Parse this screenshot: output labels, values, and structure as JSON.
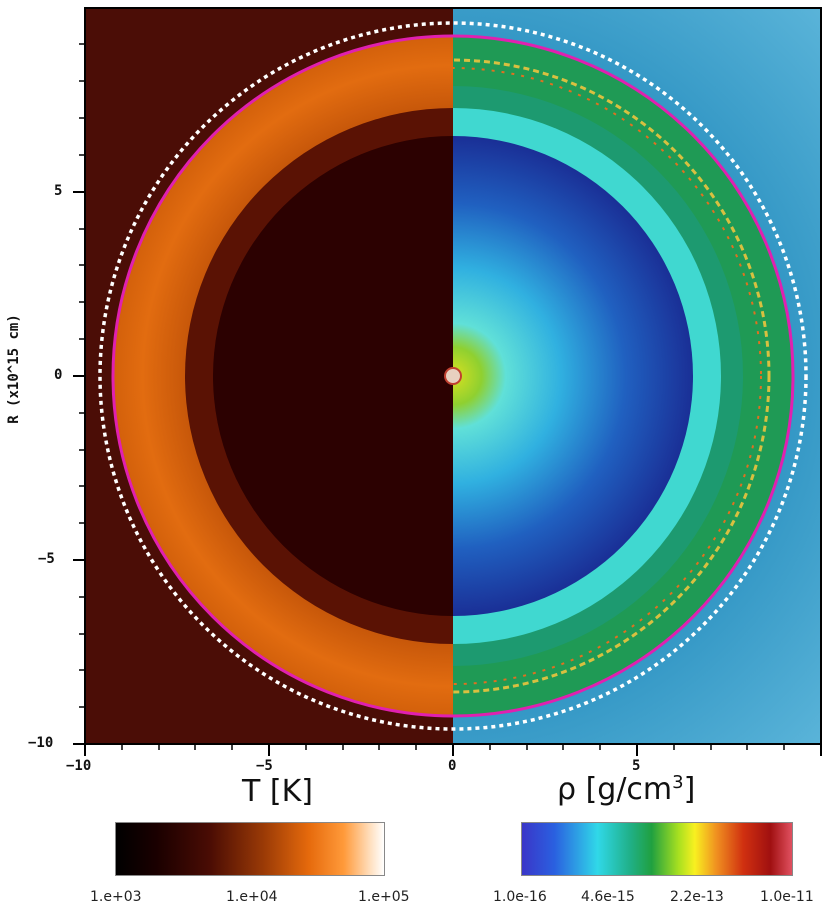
{
  "figure": {
    "y_axis_label": "R (x10^15 cm)",
    "x_ticks": [
      "−10",
      "−5",
      "0",
      "5"
    ],
    "y_ticks": [
      "5",
      "0",
      "−5",
      "−10"
    ],
    "left_panel_title": "T [K]",
    "right_panel_title_base": "ρ [g/cm",
    "right_panel_title_sup": "3",
    "right_panel_title_end": "]",
    "temperature_colorbar": {
      "labels": [
        "1.e+03",
        "1.e+04",
        "1.e+05"
      ]
    },
    "density_colorbar": {
      "labels": [
        "1.0e-16",
        "4.6e-15",
        "2.2e-13",
        "1.0e-11"
      ]
    },
    "colors": {
      "outer_temperature": "#4b0d06",
      "shell_temperature": "#d9630a",
      "inner_temperature": "#2c0101",
      "ambient_density": "#3f9fc9",
      "shell_density": "#20a05a",
      "inner_density": "#1f3aa0",
      "magenta_circle": "#e020b0",
      "dotted_circle": "#ffffff"
    }
  }
}
